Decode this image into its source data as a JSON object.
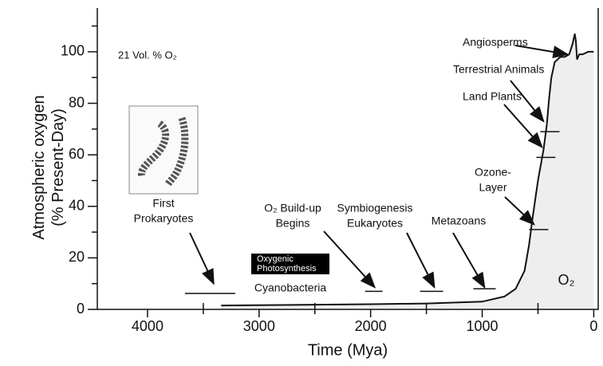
{
  "chart_data": {
    "type": "line",
    "y_label": [
      "Atmospheric oxygen",
      "(% Present-Day)"
    ],
    "x_label": "Time (Mya)",
    "xlim": [
      4450,
      -40
    ],
    "ylim": [
      0,
      117
    ],
    "xticks": [
      4000,
      3000,
      2000,
      1000,
      0
    ],
    "yticks": [
      0,
      20,
      40,
      60,
      80,
      100
    ],
    "x_minor_ticks": [
      3500,
      2500,
      1500,
      500
    ],
    "y_minor_ticks": [
      10,
      30,
      50,
      70,
      90,
      110
    ],
    "series": [
      {
        "name": "O₂",
        "color": "#111111",
        "fill": "#eeeeee",
        "x": [
          3340,
          2500,
          2000,
          1500,
          1000,
          800,
          700,
          620,
          580,
          550,
          500,
          450,
          420,
          400,
          380,
          350,
          300,
          260,
          220,
          190,
          170,
          160,
          150,
          130,
          100,
          50,
          0
        ],
        "values": [
          1.5,
          1.8,
          2,
          2.3,
          3,
          5,
          8,
          15,
          25,
          35,
          50,
          62,
          72,
          82,
          90,
          96,
          98,
          98,
          99,
          103,
          107,
          104,
          97,
          99,
          99,
          100,
          100
        ]
      }
    ],
    "event_bars": [
      {
        "x": [
          3664,
          3214
        ],
        "y": 6.2
      },
      {
        "x": [
          2050,
          1893
        ],
        "y": 7
      },
      {
        "x": [
          1557,
          1350
        ],
        "y": 7
      },
      {
        "x": [
          1079,
          879
        ],
        "y": 8
      },
      {
        "x": [
          579,
          407
        ],
        "y": 31
      },
      {
        "x": [
          514,
          343
        ],
        "y": 59
      },
      {
        "x": [
          479,
          307
        ],
        "y": 69
      }
    ],
    "annotations": [
      {
        "lines": [
          "First",
          "Prokaryotes"
        ],
        "target": [
          3407,
          10
        ]
      },
      {
        "lines": [
          "O₂ Build-up",
          "Begins"
        ],
        "target": [
          1964,
          8.6
        ]
      },
      {
        "lines": [
          "Symbiogenesis",
          "Eukaryotes"
        ],
        "target": [
          1429,
          8.6
        ]
      },
      {
        "lines": [
          "Metazoans"
        ],
        "target": [
          979,
          8.6
        ]
      },
      {
        "lines": [
          "Ozone-",
          "Layer"
        ],
        "target": [
          536,
          33
        ]
      },
      {
        "lines": [
          "Land Plants"
        ],
        "target": [
          464,
          63
        ]
      },
      {
        "lines": [
          "Terrestrial Animals"
        ],
        "target": [
          450,
          73
        ]
      },
      {
        "lines": [
          "Angiosperms"
        ],
        "target": [
          236,
          99
        ]
      }
    ],
    "note": "21 Vol. % O₂",
    "area_label": "O₂",
    "photosynthesis_box": [
      "Oxygenic",
      "Photosynthesis"
    ],
    "cyanobacteria": "Cyanobacteria"
  }
}
